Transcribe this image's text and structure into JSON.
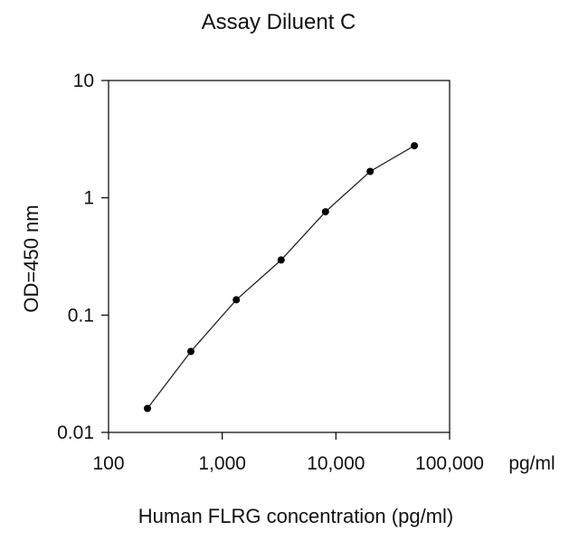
{
  "chart_data": {
    "type": "scatter",
    "title": "Assay Diluent C",
    "xlabel": "Human FLRG concentration (pg/ml)",
    "ylabel": "OD=450 nm",
    "x_unit_label": "pg/ml",
    "x_scale": "log",
    "y_scale": "log",
    "xlim": [
      100,
      100000
    ],
    "ylim": [
      0.01,
      10
    ],
    "x_ticks": [
      100,
      1000,
      10000,
      100000
    ],
    "x_tick_labels": [
      "100",
      "1,000",
      "10,000",
      "100,000"
    ],
    "y_ticks": [
      0.01,
      0.1,
      1,
      10
    ],
    "y_tick_labels": [
      "0.01",
      "0.1",
      "1",
      "10"
    ],
    "grid": false,
    "legend": "none",
    "series": [
      {
        "x": [
          220,
          530,
          1330,
          3300,
          8100,
          20000,
          49000
        ],
        "y": [
          0.016,
          0.049,
          0.135,
          0.295,
          0.76,
          1.68,
          2.78
        ]
      }
    ],
    "colors": {
      "line": "#222222",
      "marker": "#000000",
      "axis": "#000000"
    }
  }
}
